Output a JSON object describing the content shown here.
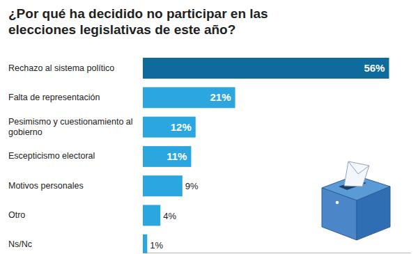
{
  "chart_data": {
    "type": "bar",
    "orientation": "horizontal",
    "title": "¿Por qué ha decidido no participar en las elecciones legislativas de este año?",
    "categories": [
      "Rechazo al sistema político",
      "Falta de representación",
      "Pesimismo y cuestionamiento al gobierno",
      "Escepticismo electoral",
      "Motivos personales",
      "Otro",
      "Ns/Nc"
    ],
    "values": [
      56,
      21,
      12,
      11,
      9,
      4,
      1
    ],
    "value_labels": [
      "56%",
      "21%",
      "12%",
      "11%",
      "9%",
      "4%",
      "1%"
    ],
    "colors": [
      "#0f6b9b",
      "#2ba6df",
      "#2ba6df",
      "#2ba6df",
      "#2ba6df",
      "#2ba6df",
      "#2ba6df"
    ],
    "xlim": [
      0,
      61
    ],
    "data_labels": true,
    "tick_labels": false,
    "grid": false
  }
}
